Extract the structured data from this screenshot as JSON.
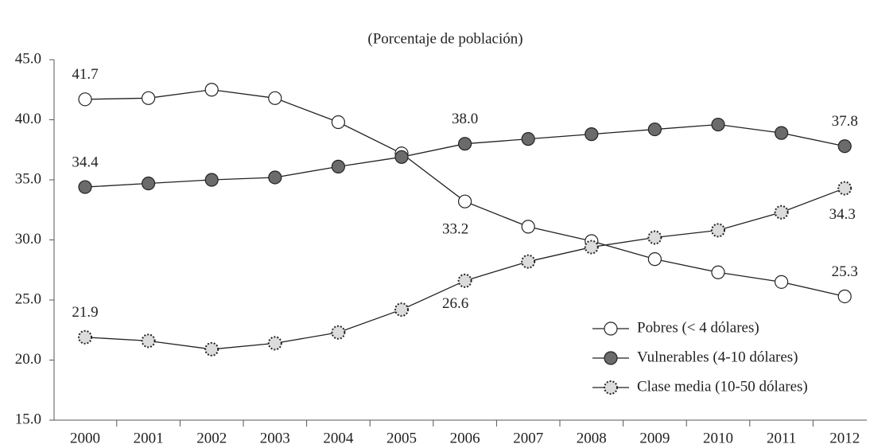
{
  "chart_data": {
    "type": "line",
    "subtitle": "(Porcentaje de población)",
    "categories": [
      "2000",
      "2001",
      "2002",
      "2003",
      "2004",
      "2005",
      "2006",
      "2007",
      "2008",
      "2009",
      "2010",
      "2011",
      "2012"
    ],
    "series": [
      {
        "name": "Pobres (< 4 dólares)",
        "color": "#ffffff",
        "stroke": "#222222",
        "dotted": false,
        "values": [
          41.7,
          41.8,
          42.5,
          41.8,
          39.8,
          37.2,
          33.2,
          31.1,
          29.9,
          28.4,
          27.3,
          26.5,
          25.3
        ],
        "value_labels": [
          "41.7",
          null,
          null,
          null,
          null,
          null,
          "33.2",
          null,
          null,
          null,
          null,
          null,
          "25.3"
        ]
      },
      {
        "name": "Vulnerables (4-10 dólares)",
        "color": "#6b6b6b",
        "stroke": "#222222",
        "dotted": false,
        "values": [
          34.4,
          34.7,
          35.0,
          35.2,
          36.1,
          36.9,
          38.0,
          38.4,
          38.8,
          39.2,
          39.6,
          38.9,
          37.8
        ],
        "value_labels": [
          "34.4",
          null,
          null,
          null,
          null,
          null,
          "38.0",
          null,
          null,
          null,
          null,
          null,
          "37.8"
        ]
      },
      {
        "name": "Clase media (10-50 dólares)",
        "color": "#dcdcdc",
        "stroke": "#222222",
        "dotted": true,
        "values": [
          21.9,
          21.6,
          20.9,
          21.4,
          22.3,
          24.2,
          26.6,
          28.2,
          29.4,
          30.2,
          30.8,
          32.3,
          34.3
        ],
        "value_labels": [
          "21.9",
          null,
          null,
          null,
          null,
          null,
          "26.6",
          null,
          null,
          null,
          null,
          null,
          "34.3"
        ]
      }
    ],
    "ylim": [
      15,
      45
    ],
    "yticks": [
      {
        "value": 15,
        "label": "15.0"
      },
      {
        "value": 20,
        "label": "20.0"
      },
      {
        "value": 25,
        "label": "25.0"
      },
      {
        "value": 30,
        "label": "30.0"
      },
      {
        "value": 35,
        "label": "35.0"
      },
      {
        "value": 40,
        "label": "40.0"
      },
      {
        "value": 45,
        "label": "45.0"
      }
    ],
    "legend": "lower right",
    "grid": false
  }
}
